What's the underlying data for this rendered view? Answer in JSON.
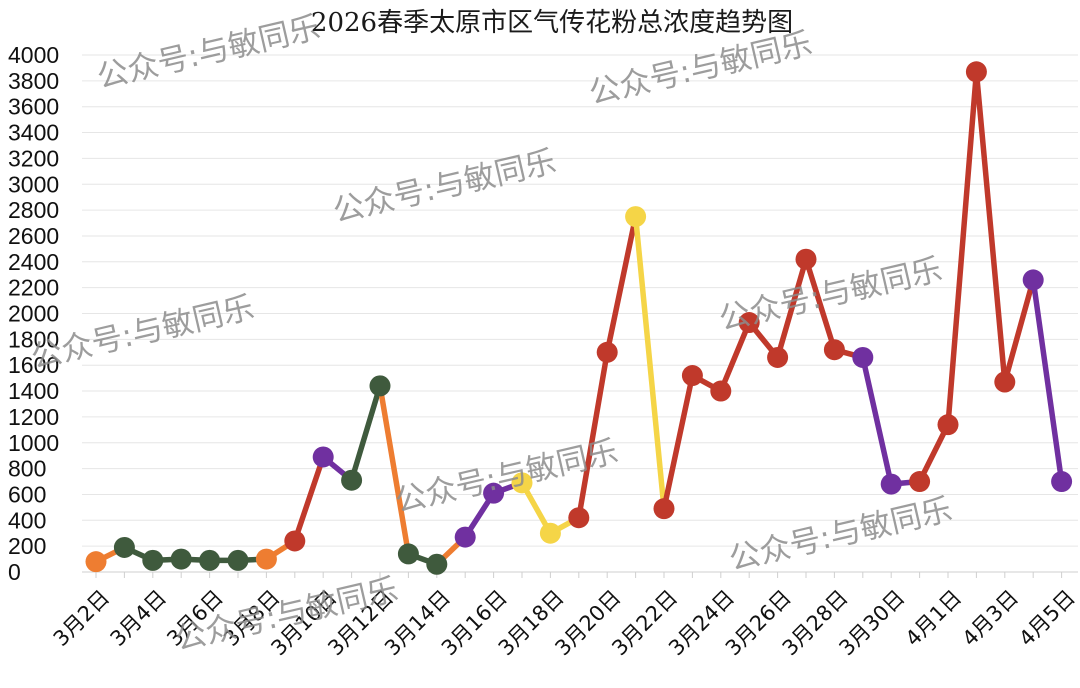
{
  "chart_data": {
    "type": "line",
    "title": "2026春季太原市区气传花粉总浓度趋势图",
    "ylim": [
      0,
      4000
    ],
    "yticks": [
      0,
      200,
      400,
      600,
      800,
      1000,
      1200,
      1400,
      1600,
      1800,
      2000,
      2200,
      2400,
      2600,
      2800,
      3000,
      3200,
      3400,
      3600,
      3800,
      4000
    ],
    "grid": true,
    "legend": "none",
    "x": [
      "3月2日",
      "3月3日",
      "3月4日",
      "3月5日",
      "3月6日",
      "3月7日",
      "3月8日",
      "3月9日",
      "3月10日",
      "3月11日",
      "3月12日",
      "3月13日",
      "3月14日",
      "3月15日",
      "3月16日",
      "3月17日",
      "3月18日",
      "3月19日",
      "3月20日",
      "3月21日",
      "3月22日",
      "3月23日",
      "3月24日",
      "3月25日",
      "3月26日",
      "3月27日",
      "3月28日",
      "3月29日",
      "3月30日",
      "3月31日",
      "4月1日",
      "4月2日",
      "4月3日",
      "4月4日",
      "4月5日"
    ],
    "xtick_labels": [
      "3月2日",
      "3月4日",
      "3月6日",
      "3月8日",
      "3月10日",
      "3月12日",
      "3月14日",
      "3月16日",
      "3月18日",
      "3月20日",
      "3月22日",
      "3月24日",
      "3月26日",
      "3月28日",
      "3月30日",
      "4月1日",
      "4月3日",
      "4月5日"
    ],
    "values": [
      80,
      190,
      90,
      100,
      90,
      90,
      100,
      240,
      890,
      710,
      1440,
      140,
      60,
      270,
      610,
      690,
      300,
      420,
      1700,
      2750,
      490,
      1520,
      1400,
      1930,
      1660,
      2420,
      1720,
      1660,
      680,
      700,
      1140,
      3870,
      1470,
      2260,
      700
    ],
    "point_colors": [
      "#ee7d31",
      "#3f5a3d",
      "#3f5a3d",
      "#3f5a3d",
      "#3f5a3d",
      "#3f5a3d",
      "#ee7d31",
      "#c0392b",
      "#7030a0",
      "#3f5a3d",
      "#3f5a3d",
      "#3f5a3d",
      "#3f5a3d",
      "#7030a0",
      "#7030a0",
      "#f5d547",
      "#f5d547",
      "#c0392b",
      "#c0392b",
      "#f5d547",
      "#c0392b",
      "#c0392b",
      "#c0392b",
      "#c0392b",
      "#c0392b",
      "#c0392b",
      "#c0392b",
      "#7030a0",
      "#7030a0",
      "#c0392b",
      "#c0392b",
      "#c0392b",
      "#c0392b",
      "#7030a0",
      "#7030a0"
    ],
    "segment_colors": [
      "#ee7d31",
      "#3f5a3d",
      "#3f5a3d",
      "#3f5a3d",
      "#3f5a3d",
      "#3f5a3d",
      "#ee7d31",
      "#c0392b",
      "#7030a0",
      "#3f5a3d",
      "#ee7d31",
      "#3f5a3d",
      "#ee7d31",
      "#7030a0",
      "#7030a0",
      "#f5d547",
      "#f5d547",
      "#c0392b",
      "#c0392b",
      "#f5d547",
      "#c0392b",
      "#c0392b",
      "#c0392b",
      "#c0392b",
      "#c0392b",
      "#c0392b",
      "#c0392b",
      "#7030a0",
      "#7030a0",
      "#c0392b",
      "#c0392b",
      "#c0392b",
      "#c0392b",
      "#7030a0"
    ]
  },
  "watermark": {
    "text": "公众号:与敏同乐",
    "color": "#8c8c8c"
  }
}
